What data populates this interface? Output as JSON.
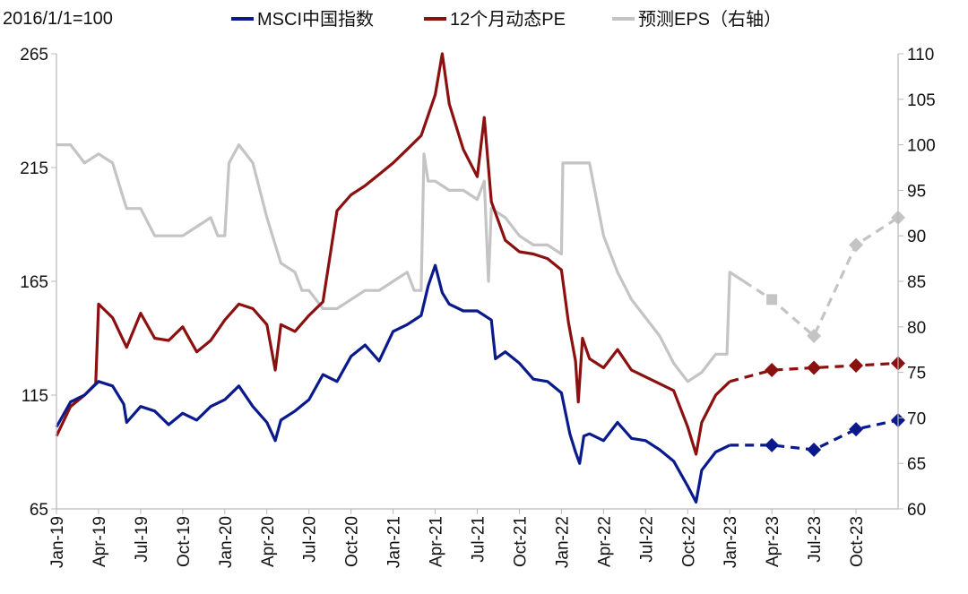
{
  "chart_data": {
    "type": "line",
    "index_note": "2016/1/1=100",
    "x_ticks": [
      "Jan-19",
      "Apr-19",
      "Jul-19",
      "Oct-19",
      "Jan-20",
      "Apr-20",
      "Jul-20",
      "Oct-20",
      "Jan-21",
      "Apr-21",
      "Jul-21",
      "Oct-21",
      "Jan-22",
      "Apr-22",
      "Jul-22",
      "Oct-22",
      "Jan-23",
      "Apr-23",
      "Jul-23",
      "Oct-23"
    ],
    "x_range_months": [
      0,
      60
    ],
    "y_left": {
      "min": 65,
      "max": 265,
      "ticks": [
        65,
        115,
        165,
        215,
        265
      ]
    },
    "y_right": {
      "min": 60,
      "max": 110,
      "ticks": [
        60,
        65,
        70,
        75,
        80,
        85,
        90,
        95,
        100,
        105,
        110
      ]
    },
    "grid": false,
    "legend_position": "top",
    "series": [
      {
        "name": "MSCI中国指数",
        "axis": "left",
        "color": "#0a1a8c",
        "actual": [
          [
            0,
            101
          ],
          [
            1,
            112
          ],
          [
            2,
            115
          ],
          [
            3,
            121
          ],
          [
            4,
            119
          ],
          [
            4.8,
            111
          ],
          [
            5,
            103
          ],
          [
            6,
            110
          ],
          [
            7,
            108
          ],
          [
            8,
            102
          ],
          [
            9,
            107
          ],
          [
            10,
            104
          ],
          [
            11,
            110
          ],
          [
            12,
            113
          ],
          [
            13,
            119
          ],
          [
            14,
            110
          ],
          [
            15,
            103
          ],
          [
            15.6,
            95
          ],
          [
            16,
            104
          ],
          [
            17,
            108
          ],
          [
            18,
            113
          ],
          [
            19,
            124
          ],
          [
            20,
            121
          ],
          [
            21,
            132
          ],
          [
            22,
            137
          ],
          [
            23,
            130
          ],
          [
            24,
            143
          ],
          [
            25,
            146
          ],
          [
            26,
            150
          ],
          [
            26.5,
            163
          ],
          [
            27,
            172
          ],
          [
            27.5,
            160
          ],
          [
            28,
            155
          ],
          [
            29,
            152
          ],
          [
            30,
            152
          ],
          [
            31,
            148
          ],
          [
            31.3,
            131
          ],
          [
            32,
            134
          ],
          [
            33,
            129
          ],
          [
            34,
            122
          ],
          [
            35,
            121
          ],
          [
            36,
            116
          ],
          [
            36.6,
            98
          ],
          [
            37,
            90
          ],
          [
            37.3,
            85
          ],
          [
            37.6,
            97
          ],
          [
            38,
            98
          ],
          [
            39,
            95
          ],
          [
            40,
            103
          ],
          [
            41,
            96
          ],
          [
            42,
            95
          ],
          [
            43,
            91
          ],
          [
            44,
            86
          ],
          [
            45,
            75
          ],
          [
            45.6,
            68
          ],
          [
            46,
            82
          ],
          [
            47,
            90
          ],
          [
            48,
            93
          ]
        ],
        "projected": [
          [
            48,
            93
          ],
          [
            51,
            93
          ],
          [
            54,
            91
          ],
          [
            57,
            100
          ],
          [
            60,
            104
          ]
        ]
      },
      {
        "name": "12个月动态PE",
        "axis": "left",
        "color": "#8b1010",
        "actual": [
          [
            0,
            97
          ],
          [
            1,
            110
          ],
          [
            2,
            115
          ],
          [
            2.8,
            120
          ],
          [
            3,
            155
          ],
          [
            4,
            149
          ],
          [
            5,
            136
          ],
          [
            6,
            151
          ],
          [
            7,
            140
          ],
          [
            8,
            139
          ],
          [
            9,
            145
          ],
          [
            10,
            134
          ],
          [
            11,
            139
          ],
          [
            12,
            148
          ],
          [
            13,
            155
          ],
          [
            14,
            153
          ],
          [
            15,
            146
          ],
          [
            15.6,
            126
          ],
          [
            16,
            146
          ],
          [
            17,
            143
          ],
          [
            18,
            150
          ],
          [
            19,
            156
          ],
          [
            20,
            196
          ],
          [
            21,
            203
          ],
          [
            22,
            207
          ],
          [
            23,
            212
          ],
          [
            24,
            217
          ],
          [
            25,
            223
          ],
          [
            26,
            229
          ],
          [
            27,
            247
          ],
          [
            27.5,
            265
          ],
          [
            28,
            243
          ],
          [
            29,
            223
          ],
          [
            30,
            211
          ],
          [
            30.5,
            237
          ],
          [
            31,
            200
          ],
          [
            32,
            183
          ],
          [
            33,
            178
          ],
          [
            34,
            177
          ],
          [
            35,
            175
          ],
          [
            36,
            170
          ],
          [
            36.5,
            147
          ],
          [
            37,
            130
          ],
          [
            37.2,
            112
          ],
          [
            37.5,
            140
          ],
          [
            38,
            131
          ],
          [
            39,
            127
          ],
          [
            40,
            135
          ],
          [
            41,
            126
          ],
          [
            42,
            123
          ],
          [
            43,
            120
          ],
          [
            44,
            117
          ],
          [
            45,
            101
          ],
          [
            45.6,
            89
          ],
          [
            46,
            103
          ],
          [
            47,
            115
          ],
          [
            48,
            121
          ]
        ],
        "projected": [
          [
            48,
            121
          ],
          [
            51,
            126
          ],
          [
            54,
            127
          ],
          [
            57,
            128
          ],
          [
            60,
            129
          ]
        ]
      },
      {
        "name": "预测EPS（右轴）",
        "axis": "right",
        "color": "#c4c4c4",
        "actual": [
          [
            0,
            100
          ],
          [
            1,
            100
          ],
          [
            2,
            98
          ],
          [
            3,
            99
          ],
          [
            4,
            98
          ],
          [
            4.8,
            94
          ],
          [
            5,
            93
          ],
          [
            6,
            93
          ],
          [
            7,
            90
          ],
          [
            8,
            90
          ],
          [
            9,
            90
          ],
          [
            10,
            91
          ],
          [
            11,
            92
          ],
          [
            11.5,
            90
          ],
          [
            12,
            90
          ],
          [
            12.3,
            98
          ],
          [
            13,
            100
          ],
          [
            14,
            98
          ],
          [
            15,
            92
          ],
          [
            16,
            87
          ],
          [
            17,
            86
          ],
          [
            17.5,
            84
          ],
          [
            18,
            84
          ],
          [
            19,
            82
          ],
          [
            20,
            82
          ],
          [
            21,
            83
          ],
          [
            22,
            84
          ],
          [
            23,
            84
          ],
          [
            24,
            85
          ],
          [
            25,
            86
          ],
          [
            25.5,
            84
          ],
          [
            26,
            84
          ],
          [
            26.2,
            99
          ],
          [
            26.5,
            96
          ],
          [
            27,
            96
          ],
          [
            28,
            95
          ],
          [
            29,
            95
          ],
          [
            30,
            94
          ],
          [
            30.5,
            96
          ],
          [
            30.8,
            85
          ],
          [
            31,
            93
          ],
          [
            32,
            92
          ],
          [
            33,
            90
          ],
          [
            34,
            89
          ],
          [
            35,
            89
          ],
          [
            36,
            88
          ],
          [
            36.1,
            98
          ],
          [
            37,
            98
          ],
          [
            38,
            98
          ],
          [
            38.5,
            94
          ],
          [
            39,
            90
          ],
          [
            40,
            86
          ],
          [
            41,
            83
          ],
          [
            42,
            81
          ],
          [
            43,
            79
          ],
          [
            44,
            76
          ],
          [
            45,
            74
          ],
          [
            46,
            75
          ],
          [
            47,
            77
          ],
          [
            47.8,
            77
          ],
          [
            48,
            86
          ],
          [
            49,
            85
          ]
        ],
        "projected": [
          [
            49,
            85
          ],
          [
            51,
            83
          ],
          [
            54,
            79
          ],
          [
            57,
            89
          ],
          [
            60,
            92
          ]
        ]
      }
    ]
  }
}
